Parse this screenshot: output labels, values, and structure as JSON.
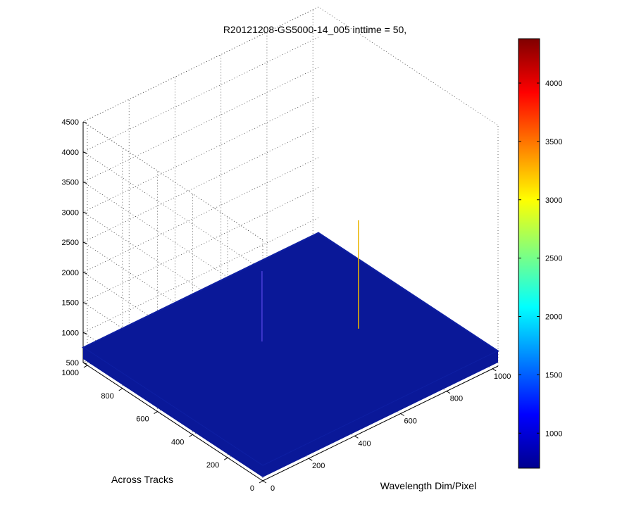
{
  "chart_data": {
    "type": "surface",
    "title": "R20121208-GS5000-14_005 inttime = 50,",
    "xlabel": "Wavelength Dim/Pixel",
    "ylabel": "Across Tracks",
    "zlabel": "",
    "xlim": [
      0,
      1024
    ],
    "ylim": [
      0,
      1024
    ],
    "zlim": [
      500,
      4500
    ],
    "xticks": [
      "0",
      "200",
      "400",
      "600",
      "800",
      "1000"
    ],
    "yticks": [
      "0",
      "200",
      "400",
      "600",
      "800",
      "1000"
    ],
    "zticks": [
      "500",
      "1000",
      "1500",
      "2000",
      "2500",
      "3000",
      "3500",
      "4000",
      "4500"
    ],
    "grid": true,
    "colormap": "jet",
    "colorbar": {
      "range": [
        700,
        4380
      ],
      "ticks": [
        "1000",
        "1500",
        "2000",
        "2500",
        "3000",
        "3500",
        "4000"
      ],
      "placement": "right"
    },
    "surface_level": 750,
    "spikes": [
      {
        "x": 470,
        "y": 620,
        "z": 1920,
        "color": "#4a3fd8"
      },
      {
        "x": 760,
        "y": 450,
        "z": 2550,
        "color": "#e8b400"
      }
    ],
    "colors": {
      "surface": "#0a1898",
      "surface_edge": "#0e1fa3"
    }
  }
}
